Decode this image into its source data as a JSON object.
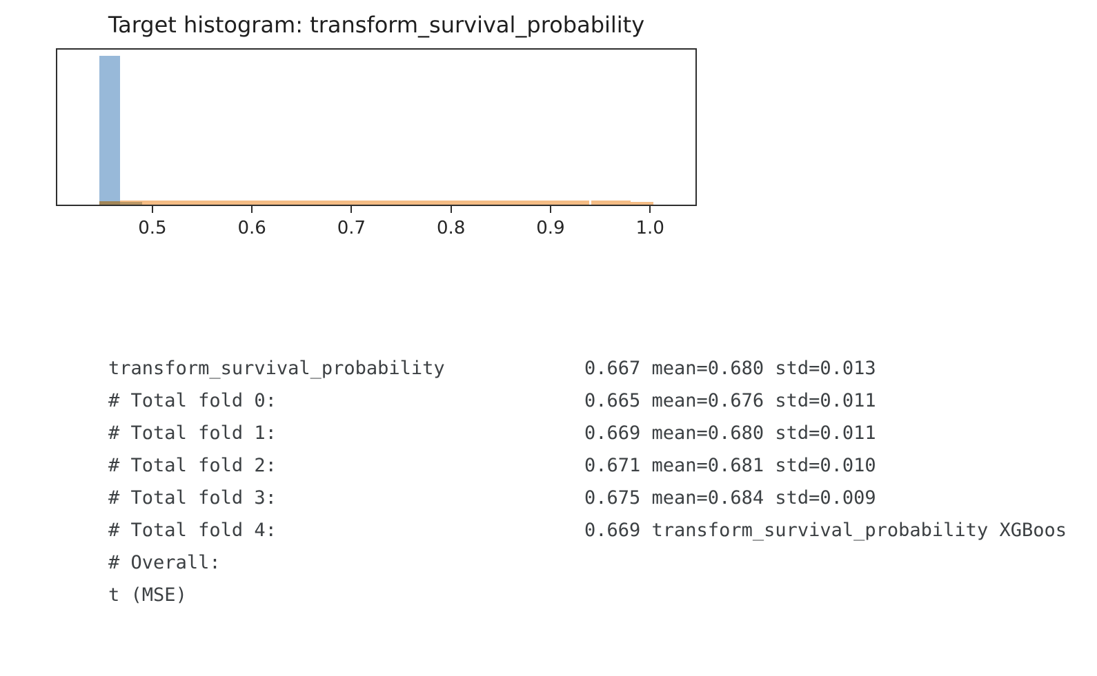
{
  "chart_data": {
    "type": "histogram",
    "title": "Target histogram: transform_survival_probability",
    "xlabel": "",
    "ylabel": "",
    "xlim": [
      0.403,
      1.047
    ],
    "x_ticks": [
      0.5,
      0.6,
      0.7,
      0.8,
      0.9,
      1.0
    ],
    "x_tick_labels": [
      "0.5",
      "0.6",
      "0.7",
      "0.8",
      "0.9",
      "1.0"
    ],
    "grid": false,
    "legend": null,
    "colors": {
      "target_bar": "#98b9d9",
      "prediction_band": "#f4bc85",
      "overlap_dark": "#a18659",
      "overlap_medium": "#bb9765",
      "axis": "#2e2e2e"
    },
    "series": [
      {
        "name": "target-histogram",
        "color": "#98b9d9",
        "bars": [
          {
            "x0": 0.4457,
            "x1": 0.4665,
            "height_frac": 0.96
          }
        ]
      },
      {
        "name": "prediction-histogram",
        "color": "#f4bc85",
        "bars": [
          {
            "x0": 0.4665,
            "x1": 0.9396,
            "height_frac": 0.0267
          },
          {
            "x0": 0.9417,
            "x1": 0.9819,
            "height_frac": 0.0267
          },
          {
            "x0": 0.9819,
            "x1": 1.0048,
            "height_frac": 0.0178
          }
        ]
      },
      {
        "name": "overlap-histogram",
        "color": "#a18659",
        "bars": [
          {
            "x0": 0.4457,
            "x1": 0.4665,
            "height_frac": 0.0222
          },
          {
            "x0": 0.4665,
            "x1": 0.4887,
            "height_frac": 0.0178,
            "color": "#bb9765"
          }
        ]
      }
    ]
  },
  "console": {
    "lines": [
      {
        "label": "transform_survival_probability",
        "value": ""
      },
      {
        "label": "# Total fold 0:",
        "value": "0.667 mean=0.680 std=0.013"
      },
      {
        "label": "# Total fold 1:",
        "value": "0.665 mean=0.676 std=0.011"
      },
      {
        "label": "# Total fold 2:",
        "value": "0.669 mean=0.680 std=0.011"
      },
      {
        "label": "# Total fold 3:",
        "value": "0.671 mean=0.681 std=0.010"
      },
      {
        "label": "# Total fold 4:",
        "value": "0.675 mean=0.684 std=0.009"
      },
      {
        "label": "# Overall:",
        "value": "0.669 transform_survival_probability XGBoos"
      },
      {
        "label": "t (MSE)",
        "value": ""
      }
    ]
  }
}
